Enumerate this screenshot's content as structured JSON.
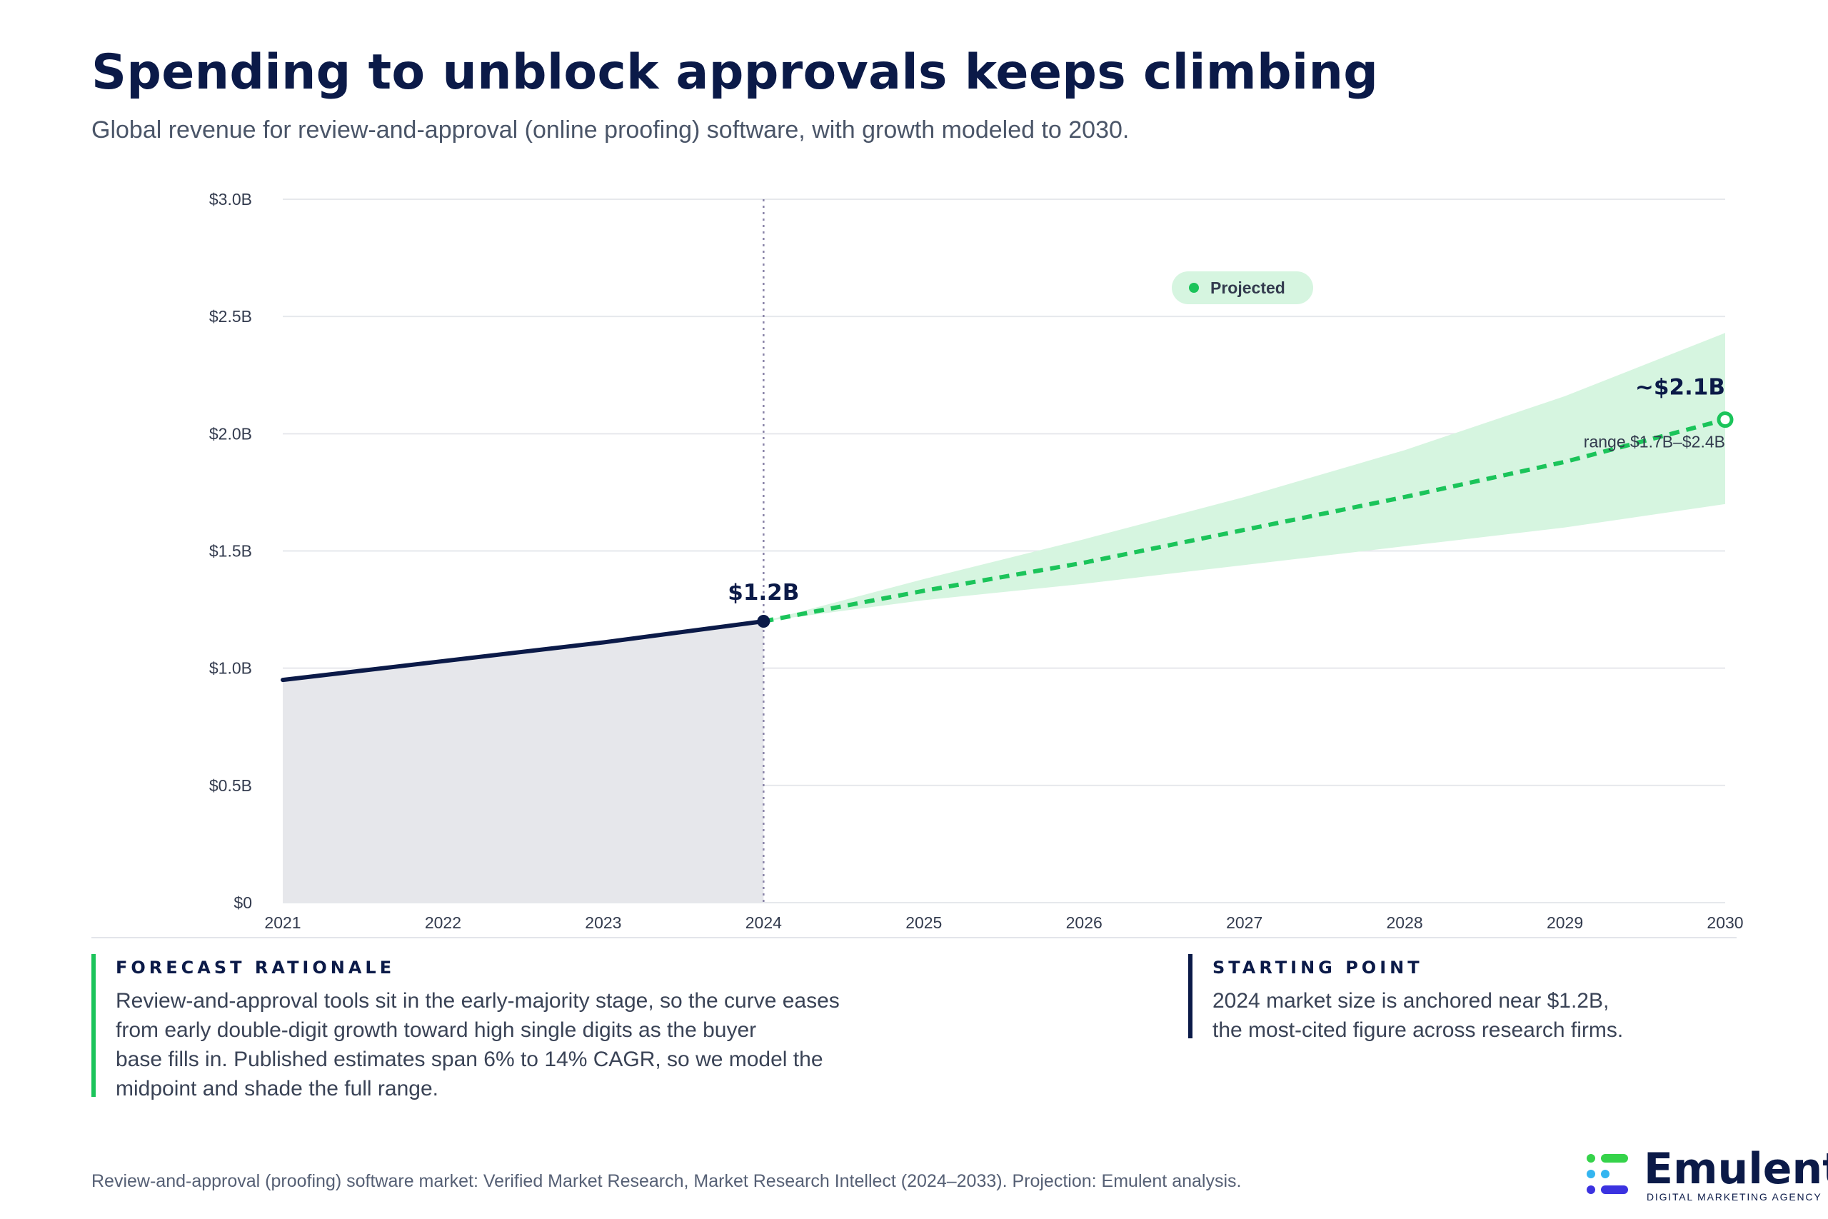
{
  "header": {
    "title": "Spending to unblock approvals keeps climbing",
    "subtitle": "Global revenue for review-and-approval (online proofing) software, with growth modeled to 2030."
  },
  "chart_data": {
    "type": "line",
    "x": [
      2021,
      2022,
      2023,
      2024,
      2025,
      2026,
      2027,
      2028,
      2029,
      2030
    ],
    "xlim": [
      2021,
      2030
    ],
    "ylim": [
      0,
      3.0
    ],
    "y_ticks": [
      "$0",
      "$0.5B",
      "$1.0B",
      "$1.5B",
      "$2.0B",
      "$2.5B",
      "$3.0B"
    ],
    "y_tick_values": [
      0,
      0.5,
      1.0,
      1.5,
      2.0,
      2.5,
      3.0
    ],
    "grid": true,
    "series": [
      {
        "name": "",
        "style": "solid-area",
        "color": "#0b1a48",
        "x": [
          2021,
          2022,
          2023,
          2024
        ],
        "values": [
          0.95,
          1.03,
          1.11,
          1.2
        ]
      },
      {
        "name": "Projected",
        "style": "dashed",
        "color": "#1bc45a",
        "x": [
          2024,
          2025,
          2026,
          2027,
          2028,
          2029,
          2030
        ],
        "values": [
          1.2,
          1.33,
          1.45,
          1.59,
          1.73,
          1.88,
          2.06
        ]
      }
    ],
    "range_band": {
      "color": "#d6f5e0",
      "x": [
        2024,
        2025,
        2026,
        2027,
        2028,
        2029,
        2030
      ],
      "low": [
        1.2,
        1.29,
        1.36,
        1.44,
        1.52,
        1.6,
        1.7
      ],
      "high": [
        1.2,
        1.38,
        1.55,
        1.73,
        1.93,
        2.16,
        2.43
      ]
    },
    "divider_x": 2024,
    "legend": {
      "label": "Projected",
      "position": "top-right"
    },
    "annotations": {
      "start_label": "$1.2B",
      "end_label": "~$2.1B",
      "range_label": "range $1.7B–$2.4B"
    }
  },
  "notes": {
    "rationale": {
      "heading": "FORECAST RATIONALE",
      "lines": [
        "Review-and-approval tools sit in the early-majority stage, so the curve eases",
        "from early double-digit growth toward high single digits as the buyer",
        "base fills in. Published estimates span 6% to 14% CAGR, so we model the",
        "midpoint and shade the full range."
      ]
    },
    "starting_point": {
      "heading": "STARTING POINT",
      "lines": [
        "2024 market size is anchored near $1.2B,",
        "the most-cited figure across research firms."
      ]
    }
  },
  "footer": {
    "source": "Review-and-approval (proofing) software market: Verified Market Research, Market Research Intellect (2024–2033). Projection: Emulent analysis.",
    "logo_name": "Emulent",
    "logo_tagline": "DIGITAL MARKETING AGENCY"
  },
  "colors": {
    "navy": "#0b1a48",
    "green": "#1bc45a",
    "band": "#d6f5e0",
    "history_fill": "#e6e7eb",
    "grid": "#e6e8ec"
  }
}
